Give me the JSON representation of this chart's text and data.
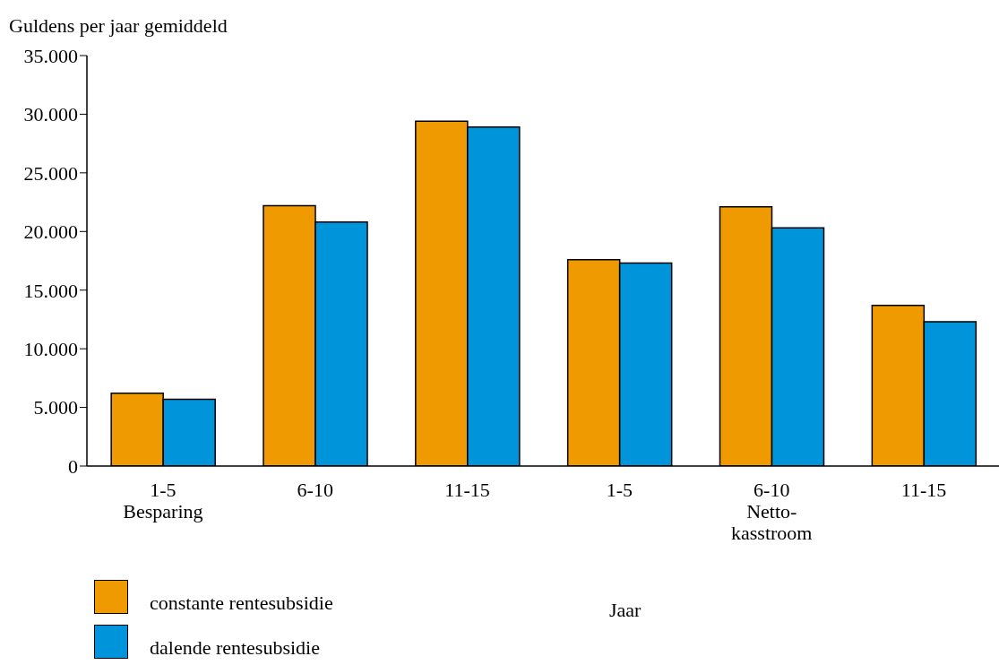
{
  "chart_data": {
    "type": "bar",
    "ylabel": "Guldens per jaar gemiddeld",
    "xlabel": "Jaar",
    "categories": [
      "1-5\nBesparing",
      "6-10",
      "11-15",
      "1-5",
      "6-10\nNetto-\nkasstroom",
      "11-15"
    ],
    "series": [
      {
        "name": "constante rentesubsidie",
        "color": "#ee9a00",
        "values": [
          6200,
          22200,
          29400,
          17600,
          22100,
          13700
        ]
      },
      {
        "name": "dalende rentesubsidie",
        "color": "#0095da",
        "values": [
          5700,
          20800,
          28900,
          17300,
          20300,
          12300
        ]
      }
    ],
    "ylim": [
      0,
      35000
    ],
    "yticks": [
      {
        "value": 0,
        "label": "0"
      },
      {
        "value": 5000,
        "label": "5.000"
      },
      {
        "value": 10000,
        "label": "10.000"
      },
      {
        "value": 15000,
        "label": "15.000"
      },
      {
        "value": 20000,
        "label": "20.000"
      },
      {
        "value": 25000,
        "label": "25.000"
      },
      {
        "value": 30000,
        "label": "30.000"
      },
      {
        "value": 35000,
        "label": "35.000"
      }
    ],
    "grid": false,
    "legend": "bottom left"
  }
}
